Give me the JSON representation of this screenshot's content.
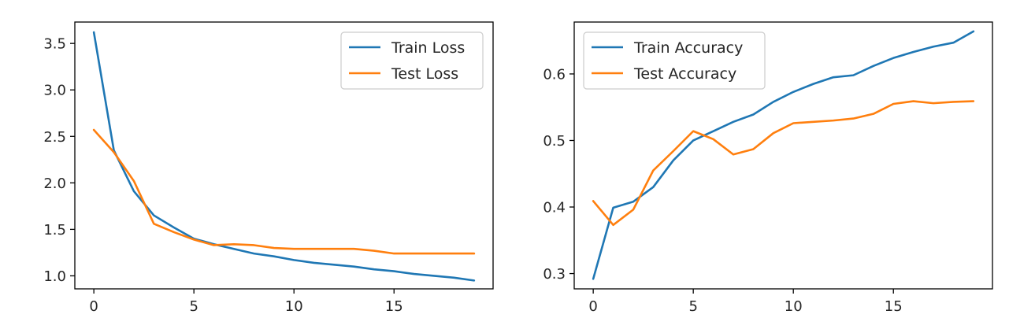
{
  "chart_data": [
    {
      "type": "line",
      "title": "",
      "xlabel": "",
      "ylabel": "",
      "xlim": [
        -0.95,
        19.95
      ],
      "ylim": [
        0.86,
        3.73
      ],
      "xticks": [
        0,
        5,
        10,
        15
      ],
      "yticks": [
        1.0,
        1.5,
        2.0,
        2.5,
        3.0,
        3.5
      ],
      "ytick_labels": [
        "1.0",
        "1.5",
        "2.0",
        "2.5",
        "3.0",
        "3.5"
      ],
      "legend_position": "upper right",
      "x": [
        0,
        1,
        2,
        3,
        4,
        5,
        6,
        7,
        8,
        9,
        10,
        11,
        12,
        13,
        14,
        15,
        16,
        17,
        18,
        19
      ],
      "series": [
        {
          "name": "Train Loss",
          "color": "#1f77b4",
          "values": [
            3.62,
            2.35,
            1.91,
            1.65,
            1.52,
            1.4,
            1.34,
            1.29,
            1.24,
            1.21,
            1.17,
            1.14,
            1.12,
            1.1,
            1.07,
            1.05,
            1.02,
            1.0,
            0.98,
            0.95
          ]
        },
        {
          "name": "Test Loss",
          "color": "#ff7f0e",
          "values": [
            2.57,
            2.33,
            2.02,
            1.56,
            1.47,
            1.39,
            1.33,
            1.34,
            1.33,
            1.3,
            1.29,
            1.29,
            1.29,
            1.29,
            1.27,
            1.24,
            1.24,
            1.24,
            1.24,
            1.24
          ]
        }
      ]
    },
    {
      "type": "line",
      "title": "",
      "xlabel": "",
      "ylabel": "",
      "xlim": [
        -0.95,
        19.95
      ],
      "ylim": [
        0.277,
        0.678
      ],
      "xticks": [
        0,
        5,
        10,
        15
      ],
      "yticks": [
        0.3,
        0.4,
        0.5,
        0.6
      ],
      "ytick_labels": [
        "0.3",
        "0.4",
        "0.5",
        "0.6"
      ],
      "legend_position": "upper left",
      "x": [
        0,
        1,
        2,
        3,
        4,
        5,
        6,
        7,
        8,
        9,
        10,
        11,
        12,
        13,
        14,
        15,
        16,
        17,
        18,
        19
      ],
      "series": [
        {
          "name": "Train Accuracy",
          "color": "#1f77b4",
          "values": [
            0.292,
            0.399,
            0.408,
            0.43,
            0.47,
            0.5,
            0.514,
            0.528,
            0.539,
            0.558,
            0.573,
            0.585,
            0.595,
            0.598,
            0.612,
            0.624,
            0.633,
            0.641,
            0.647,
            0.664
          ]
        },
        {
          "name": "Test Accuracy",
          "color": "#ff7f0e",
          "values": [
            0.409,
            0.373,
            0.396,
            0.455,
            0.484,
            0.514,
            0.502,
            0.479,
            0.487,
            0.511,
            0.526,
            0.528,
            0.53,
            0.533,
            0.54,
            0.555,
            0.559,
            0.556,
            0.558,
            0.559
          ]
        }
      ]
    }
  ]
}
